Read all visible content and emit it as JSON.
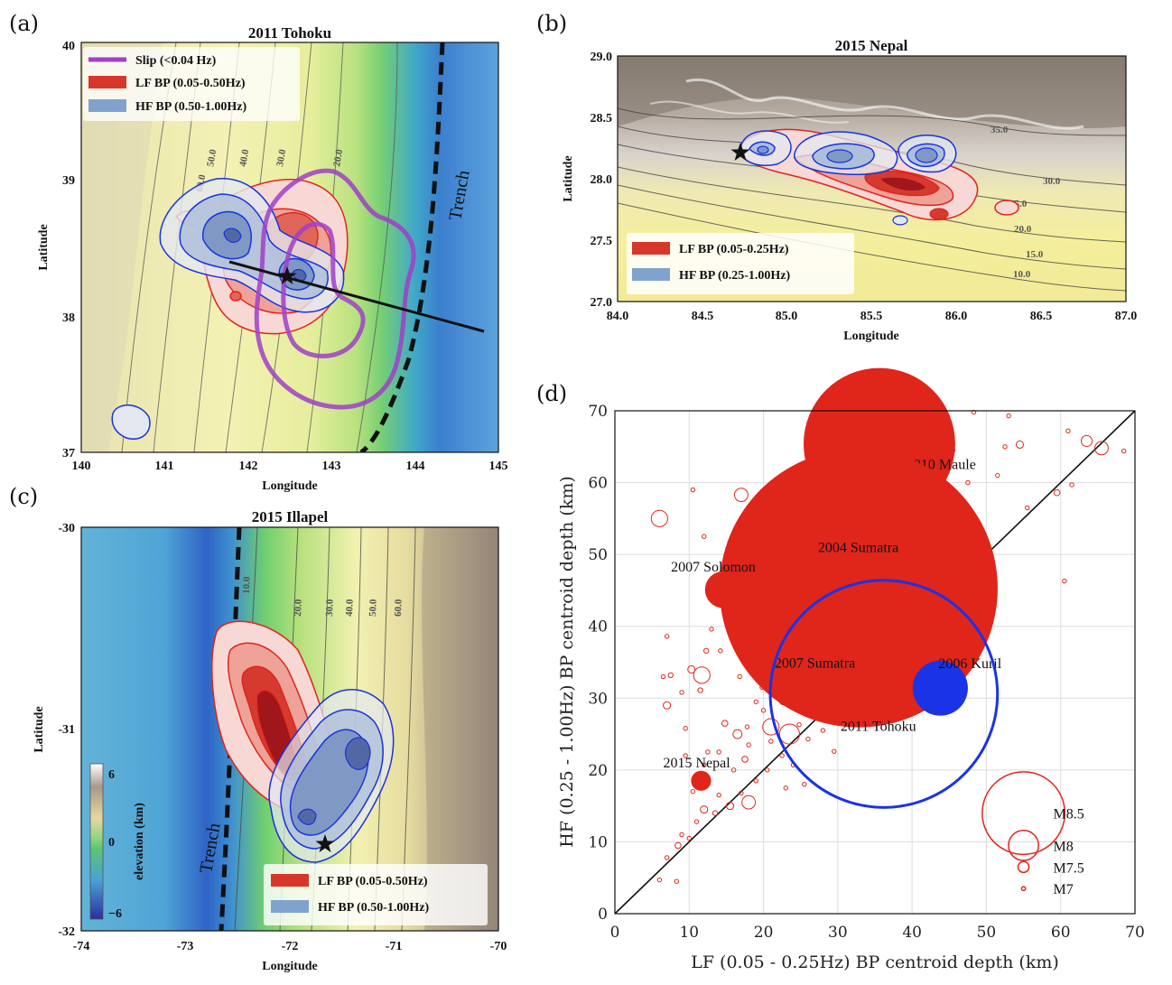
{
  "colors": {
    "lf_fill": "#d7372b",
    "lf_line": "#e0251b",
    "hf_fill": "#7fa3cc",
    "hf_line": "#1633e0",
    "slip": "#a040c8",
    "dark_red": "#a0161b",
    "scatter_red": "#e0251b",
    "scatter_blue": "#1a33e6"
  },
  "panels": {
    "a": {
      "label": "(a)",
      "title": "2011 Tohoku",
      "xlabel": "Longitude",
      "ylabel": "Latitude",
      "xticks": [
        "140",
        "141",
        "142",
        "143",
        "144",
        "145"
      ],
      "yticks": [
        "37",
        "38",
        "39",
        "40"
      ],
      "legend": [
        "Slip (<0.04 Hz)",
        "LF BP (0.05-0.50Hz)",
        "HF BP (0.50-1.00Hz)"
      ],
      "contour_labels": [
        "60.0",
        "50.0",
        "40.0",
        "30.0",
        "20.0"
      ],
      "trench_label": "Trench"
    },
    "b": {
      "label": "(b)",
      "title": "2015 Nepal",
      "xlabel": "Longitude",
      "ylabel": "Latitude",
      "xticks": [
        "84.0",
        "84.5",
        "85.0",
        "85.5",
        "86.0",
        "86.5",
        "87.0"
      ],
      "yticks": [
        "27.0",
        "27.5",
        "28.0",
        "28.5",
        "29.0"
      ],
      "legend": [
        "LF BP (0.05-0.25Hz)",
        "HF BP (0.25-1.00Hz)"
      ],
      "contour_labels": [
        "35.0",
        "30.0",
        "25.0",
        "20.0",
        "15.0",
        "10.0"
      ]
    },
    "c": {
      "label": "(c)",
      "title": "2015 Illapel",
      "xlabel": "Longitude",
      "ylabel": "Latitude",
      "xticks": [
        "-74",
        "-73",
        "-72",
        "-71",
        "-70"
      ],
      "yticks": [
        "-30",
        "-31",
        "-32"
      ],
      "legend": [
        "LF BP (0.05-0.50Hz)",
        "HF BP (0.50-1.00Hz)"
      ],
      "contour_labels": [
        "10.0",
        "20.0",
        "30.0",
        "40.0",
        "50.0",
        "60.0"
      ],
      "trench_label": "Trench",
      "colorbar": {
        "label": "elevation (km)",
        "ticks": [
          "6",
          "0",
          "−6"
        ]
      }
    },
    "d": {
      "label": "(d)"
    }
  },
  "chart_data": {
    "type": "scatter",
    "xlabel": "LF (0.05 - 0.25Hz) BP centroid depth (km)",
    "ylabel": "HF (0.25 - 1.00Hz) BP centroid depth (km)",
    "xlim": [
      0,
      70
    ],
    "ylim": [
      0,
      70
    ],
    "xticks": [
      0,
      10,
      20,
      30,
      40,
      50,
      60,
      70
    ],
    "yticks": [
      0,
      10,
      20,
      30,
      40,
      50,
      60,
      70
    ],
    "grid": true,
    "reference_line": "y = x",
    "legend_placement": "lower-right",
    "size_legend": [
      {
        "label": "M8.5",
        "mag": 8.5
      },
      {
        "label": "M8",
        "mag": 8.0
      },
      {
        "label": "M7.5",
        "mag": 7.5
      },
      {
        "label": "M7",
        "mag": 7.0
      }
    ],
    "labeled_events": [
      {
        "name": "2010 Maule",
        "x": 35.6,
        "y": 65.4,
        "mag": 8.8,
        "color": "red"
      },
      {
        "name": "2004 Sumatra",
        "x": 32.8,
        "y": 45.3,
        "mag": 9.1,
        "color": "red"
      },
      {
        "name": "2007 Solomon",
        "x": 14.6,
        "y": 45.1,
        "mag": 8.1,
        "color": "red"
      },
      {
        "name": "2007 Sumatra",
        "x": 30.0,
        "y": 32.0,
        "mag": 8.4,
        "color": "red"
      },
      {
        "name": "2006 Kuril",
        "x": 43.8,
        "y": 31.4,
        "mag": 8.3,
        "color": "blue"
      },
      {
        "name": "2011 Tohoku",
        "x": 36.2,
        "y": 30.6,
        "mag": 9.0,
        "color": "blue_open"
      },
      {
        "name": "2015 Nepal",
        "x": 11.6,
        "y": 18.5,
        "mag": 7.8,
        "color": "red"
      }
    ],
    "other_events": [
      [
        6.0,
        55.0,
        7.7
      ],
      [
        17.0,
        58.3,
        7.6
      ],
      [
        10.5,
        59.0,
        7.0
      ],
      [
        12.0,
        52.5,
        7.0
      ],
      [
        16.5,
        45.2,
        7.5
      ],
      [
        26.5,
        64.0,
        7.3
      ],
      [
        30.5,
        65.2,
        7.8
      ],
      [
        31.5,
        54.5,
        7.0
      ],
      [
        33.5,
        49.0,
        7.0
      ],
      [
        25.2,
        50.0,
        7.0
      ],
      [
        24.5,
        45.0,
        7.0
      ],
      [
        23.0,
        42.0,
        7.4
      ],
      [
        7.0,
        38.6,
        7.0
      ],
      [
        6.5,
        33.0,
        7.0
      ],
      [
        7.5,
        33.2,
        7.1
      ],
      [
        10.3,
        34.0,
        7.3
      ],
      [
        11.7,
        33.2,
        7.7
      ],
      [
        12.3,
        36.6,
        7.1
      ],
      [
        14.2,
        36.6,
        7.0
      ],
      [
        16.8,
        33.0,
        7.0
      ],
      [
        18.5,
        36.4,
        7.0
      ],
      [
        13.0,
        39.6,
        7.0
      ],
      [
        7.0,
        29.0,
        7.3
      ],
      [
        9.0,
        30.8,
        7.0
      ],
      [
        11.5,
        31.1,
        7.1
      ],
      [
        14.8,
        26.5,
        7.2
      ],
      [
        16.5,
        25.0,
        7.4
      ],
      [
        17.8,
        26.0,
        7.0
      ],
      [
        19.8,
        31.5,
        7.0
      ],
      [
        21.5,
        33.5,
        7.2
      ],
      [
        21.0,
        26.0,
        7.7
      ],
      [
        22.7,
        29.7,
        7.4
      ],
      [
        23.5,
        25.0,
        7.8
      ],
      [
        24.8,
        26.3,
        7.0
      ],
      [
        26.0,
        29.2,
        7.3
      ],
      [
        27.0,
        31.5,
        7.5
      ],
      [
        28.5,
        34.0,
        7.2
      ],
      [
        29.5,
        27.8,
        7.4
      ],
      [
        31.5,
        28.6,
        7.5
      ],
      [
        33.0,
        36.8,
        7.6
      ],
      [
        34.5,
        41.5,
        7.0
      ],
      [
        35.5,
        45.0,
        7.0
      ],
      [
        37.0,
        38.5,
        7.3
      ],
      [
        38.0,
        36.8,
        7.1
      ],
      [
        39.5,
        41.0,
        7.0
      ],
      [
        40.5,
        44.0,
        7.0
      ],
      [
        41.5,
        47.0,
        7.3
      ],
      [
        42.0,
        48.5,
        7.6
      ],
      [
        43.0,
        49.8,
        7.5
      ],
      [
        44.0,
        44.5,
        7.2
      ],
      [
        45.0,
        47.6,
        7.3
      ],
      [
        46.0,
        52.3,
        7.2
      ],
      [
        47.0,
        45.0,
        7.1
      ],
      [
        48.0,
        49.5,
        7.2
      ],
      [
        49.0,
        52.6,
        7.0
      ],
      [
        48.5,
        43.5,
        7.0
      ],
      [
        44.5,
        56.5,
        7.3
      ],
      [
        45.5,
        58.0,
        7.0
      ],
      [
        43.5,
        60.8,
        7.0
      ],
      [
        40.0,
        60.0,
        7.0
      ],
      [
        42.5,
        59.5,
        7.0
      ],
      [
        47.5,
        60.0,
        7.0
      ],
      [
        50.0,
        48.2,
        7.0
      ],
      [
        51.5,
        61.0,
        7.0
      ],
      [
        52.5,
        65.0,
        7.0
      ],
      [
        54.5,
        65.3,
        7.3
      ],
      [
        53.0,
        69.3,
        7.0
      ],
      [
        48.3,
        69.8,
        7.0
      ],
      [
        45.5,
        64.5,
        7.0
      ],
      [
        59.5,
        58.6,
        7.2
      ],
      [
        61.0,
        67.2,
        7.0
      ],
      [
        63.5,
        65.8,
        7.5
      ],
      [
        65.5,
        64.8,
        7.6
      ],
      [
        68.5,
        64.4,
        7.0
      ],
      [
        60.5,
        46.3,
        7.0
      ],
      [
        61.5,
        59.7,
        7.0
      ],
      [
        55.5,
        56.5,
        7.0
      ],
      [
        6.0,
        4.7,
        7.0
      ],
      [
        7.0,
        7.8,
        7.0
      ],
      [
        8.5,
        9.5,
        7.2
      ],
      [
        9.0,
        11.0,
        7.0
      ],
      [
        10.0,
        10.5,
        7.0
      ],
      [
        8.3,
        4.5,
        7.0
      ],
      [
        11.0,
        12.8,
        7.0
      ],
      [
        12.0,
        14.5,
        7.3
      ],
      [
        13.5,
        14.0,
        7.1
      ],
      [
        15.5,
        15.0,
        7.3
      ],
      [
        14.0,
        16.5,
        7.0
      ],
      [
        18.0,
        15.5,
        7.6
      ],
      [
        17.0,
        16.8,
        7.0
      ],
      [
        19.0,
        18.5,
        7.0
      ],
      [
        12.0,
        20.7,
        7.0
      ],
      [
        12.5,
        22.5,
        7.0
      ],
      [
        17.5,
        21.5,
        7.2
      ],
      [
        20.5,
        20.0,
        7.0
      ],
      [
        21.0,
        24.0,
        7.0
      ],
      [
        22.5,
        22.0,
        7.0
      ],
      [
        24.0,
        20.7,
        7.0
      ],
      [
        26.0,
        24.3,
        7.0
      ],
      [
        28.0,
        25.5,
        7.0
      ],
      [
        29.5,
        22.6,
        7.0
      ],
      [
        31.0,
        30.5,
        7.1
      ],
      [
        33.5,
        34.5,
        7.3
      ],
      [
        35.0,
        33.0,
        7.0
      ],
      [
        36.0,
        36.0,
        7.0
      ],
      [
        37.5,
        38.3,
        7.0
      ],
      [
        38.5,
        40.6,
        7.0
      ],
      [
        39.5,
        37.0,
        7.0
      ],
      [
        40.0,
        46.0,
        7.0
      ],
      [
        41.0,
        45.5,
        7.0
      ],
      [
        42.5,
        41.0,
        7.0
      ],
      [
        43.5,
        43.0,
        7.2
      ],
      [
        46.5,
        40.0,
        7.0
      ],
      [
        48.0,
        46.5,
        7.0
      ],
      [
        47.5,
        47.8,
        7.0
      ],
      [
        46.0,
        50.0,
        7.0
      ],
      [
        45.0,
        51.5,
        7.0
      ],
      [
        44.0,
        53.0,
        7.2
      ],
      [
        43.5,
        51.6,
        7.0
      ],
      [
        42.0,
        54.5,
        7.0
      ],
      [
        40.0,
        52.6,
        7.0
      ],
      [
        30.0,
        39.0,
        7.0
      ],
      [
        31.0,
        40.0,
        7.2
      ],
      [
        28.0,
        40.5,
        7.0
      ],
      [
        27.0,
        43.5,
        7.0
      ],
      [
        25.5,
        37.2,
        7.0
      ],
      [
        24.8,
        35.0,
        7.0
      ],
      [
        23.0,
        34.5,
        7.2
      ],
      [
        22.0,
        36.5,
        7.0
      ],
      [
        21.5,
        31.0,
        7.0
      ],
      [
        20.0,
        28.3,
        7.0
      ],
      [
        19.0,
        29.5,
        7.0
      ],
      [
        18.0,
        23.5,
        7.0
      ],
      [
        16.0,
        20.0,
        7.0
      ],
      [
        14.0,
        22.5,
        7.0
      ],
      [
        9.5,
        25.8,
        7.0
      ],
      [
        9.5,
        22.0,
        7.0
      ],
      [
        10.5,
        17.0,
        7.0
      ],
      [
        23.0,
        17.5,
        7.0
      ],
      [
        25.5,
        18.0,
        7.0
      ],
      [
        27.5,
        28.0,
        7.3
      ],
      [
        33.0,
        29.5,
        7.0
      ],
      [
        32.5,
        27.5,
        7.0
      ],
      [
        34.5,
        31.5,
        7.0
      ],
      [
        36.5,
        39.0,
        7.0
      ],
      [
        38.0,
        42.0,
        7.0
      ],
      [
        39.0,
        43.5,
        7.3
      ],
      [
        40.5,
        49.5,
        7.0
      ],
      [
        41.0,
        51.0,
        7.0
      ],
      [
        42.0,
        62.5,
        7.0
      ]
    ]
  }
}
